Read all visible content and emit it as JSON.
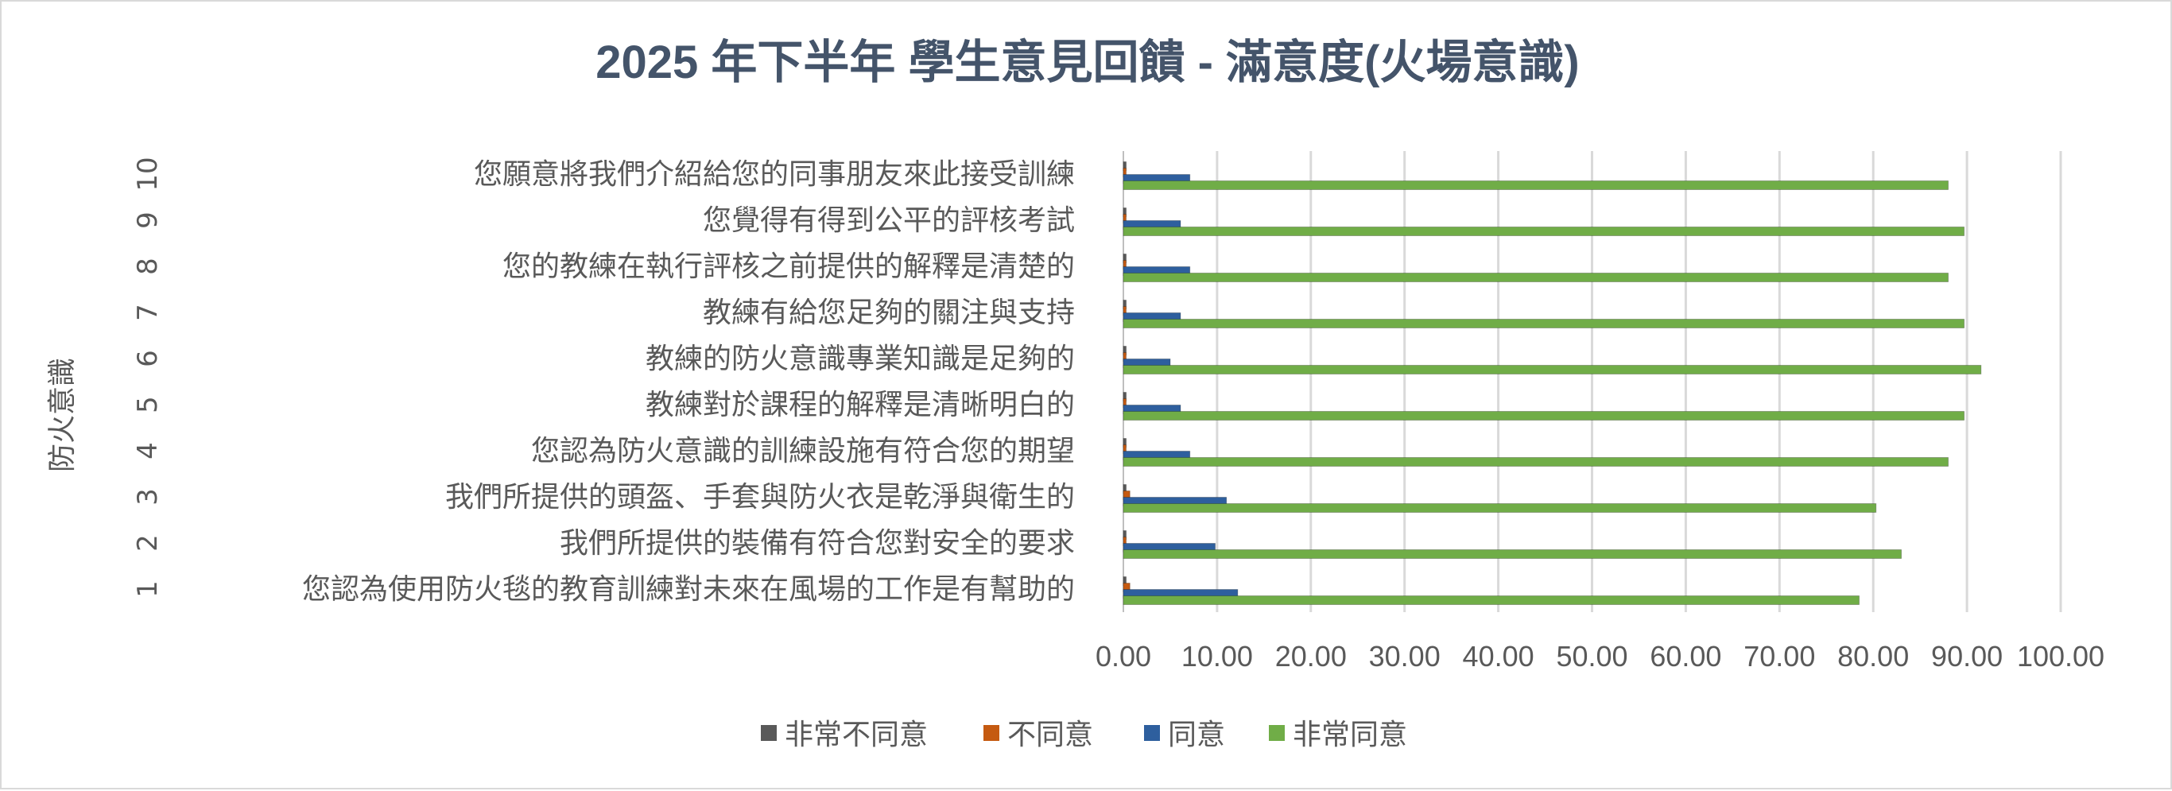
{
  "chart_data": {
    "type": "bar",
    "orientation": "horizontal",
    "title": "2025 年下半年 學生意見回饋 - 滿意度(火場意識)",
    "ylabel": "防火意識",
    "xlabel": "",
    "xlim": [
      0,
      100
    ],
    "x_ticks": [
      "0.00",
      "10.00",
      "20.00",
      "30.00",
      "40.00",
      "50.00",
      "60.00",
      "70.00",
      "80.00",
      "90.00",
      "100.00"
    ],
    "grid": "vertical",
    "legend_position": "bottom",
    "categories": [
      {
        "num": "1",
        "label": "您認為使用防火毯的教育訓練對未來在風場的工作是有幫助的"
      },
      {
        "num": "2",
        "label": "我們所提供的裝備有符合您對安全的要求"
      },
      {
        "num": "3",
        "label": "我們所提供的頭盔、手套與防火衣是乾淨與衛生的"
      },
      {
        "num": "4",
        "label": "您認為防火意識的訓練設施有符合您的期望"
      },
      {
        "num": "5",
        "label": "教練對於課程的解釋是清晰明白的"
      },
      {
        "num": "6",
        "label": "教練的防火意識專業知識是足夠的"
      },
      {
        "num": "7",
        "label": "教練有給您足夠的關注與支持"
      },
      {
        "num": "8",
        "label": "您的教練在執行評核之前提供的解釋是清楚的"
      },
      {
        "num": "9",
        "label": "您覺得有得到公平的評核考試"
      },
      {
        "num": "10",
        "label": "您願意將我們介紹給您的同事朋友來此接受訓練"
      }
    ],
    "series": [
      {
        "name": "非常不同意",
        "color": "#595959",
        "values": [
          0.3,
          0.3,
          0.3,
          0.3,
          0.3,
          0.3,
          0.3,
          0.3,
          0.3,
          0.3
        ]
      },
      {
        "name": "不同意",
        "color": "#c55a11",
        "values": [
          0.7,
          0.3,
          0.7,
          0.3,
          0.3,
          0.3,
          0.3,
          0.3,
          0.3,
          0.3
        ]
      },
      {
        "name": "同意",
        "color": "#2e5f9e",
        "values": [
          12.2,
          9.8,
          11.0,
          7.1,
          6.1,
          5.0,
          6.1,
          7.1,
          6.1,
          7.1
        ]
      },
      {
        "name": "非常同意",
        "color": "#70ad47",
        "values": [
          78.5,
          83.0,
          80.3,
          88.0,
          89.7,
          91.5,
          89.7,
          88.0,
          89.7,
          88.0
        ]
      }
    ]
  }
}
